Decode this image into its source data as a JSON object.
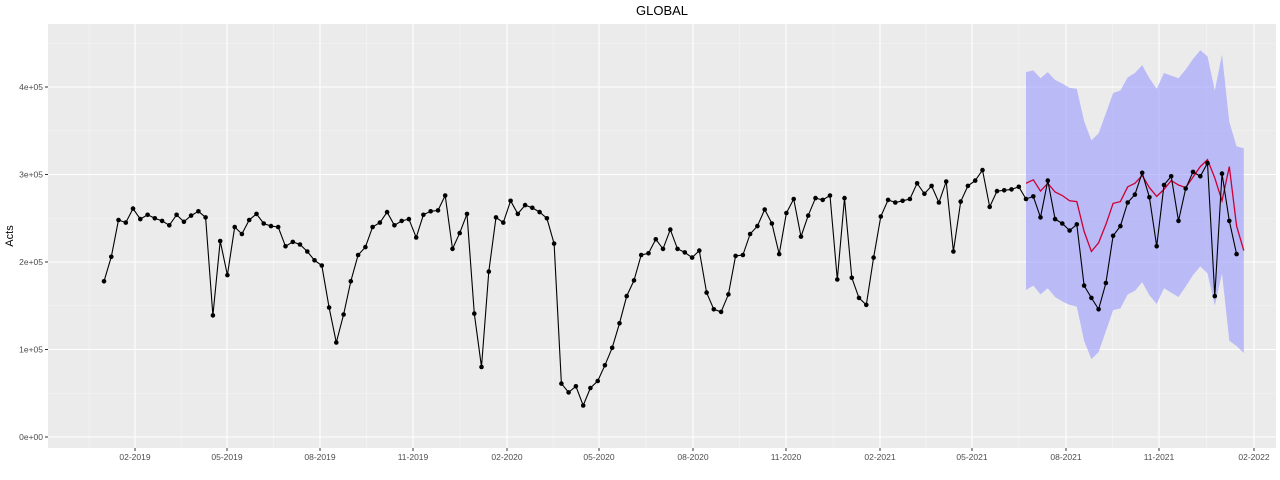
{
  "chart_data": {
    "type": "line",
    "title": "GLOBAL",
    "xlabel": "",
    "ylabel": "Acts",
    "x_ticks": [
      "02-2019",
      "05-2019",
      "08-2019",
      "11-2019",
      "02-2020",
      "05-2020",
      "08-2020",
      "11-2020",
      "02-2021",
      "05-2021",
      "08-2021",
      "11-2021",
      "02-2022"
    ],
    "y_ticks": [
      "0e+00",
      "1e+05",
      "2e+05",
      "3e+05",
      "4e+05"
    ],
    "ylim": [
      -10000,
      470000
    ],
    "grid": true,
    "background": "#ebebeb",
    "colors": {
      "actual": "#000000",
      "fitted": "#cc0033",
      "interval": "#9999ff"
    },
    "series": [
      {
        "values": [
          178000,
          206000,
          248000,
          245000,
          261000,
          249000,
          254000,
          250000,
          247000,
          242000,
          254000,
          246000,
          253000,
          258000,
          251000,
          139000,
          224000,
          185000,
          240000,
          232000,
          248000,
          255000,
          244000,
          241000,
          240000,
          218000,
          223000,
          220000,
          212000,
          202000,
          196000,
          148000,
          108000,
          140000,
          178000,
          208000,
          217000,
          240000,
          245000,
          257000,
          242000,
          247000,
          249000,
          228000,
          254000,
          258000,
          259000,
          276000,
          215000,
          233000,
          255000,
          141000,
          80000,
          189000,
          251000,
          245000,
          270000,
          255000,
          265000,
          262000,
          257000,
          250000,
          221000,
          61000,
          51000,
          58000,
          36000,
          56000,
          64000,
          82000,
          102000,
          130000,
          161000,
          179000,
          208000,
          210000,
          226000,
          215000,
          237000,
          215000,
          211000,
          205000,
          213000,
          165000,
          146000,
          143000,
          163000,
          207000,
          208000,
          232000,
          241000,
          260000,
          244000,
          209000,
          256000,
          272000,
          229000,
          253000,
          273000,
          271000,
          276000,
          180000,
          273000,
          182000,
          159000,
          151000,
          205000,
          252000,
          271000,
          268000,
          270000,
          272000,
          290000,
          278000,
          287000,
          268000,
          292000,
          212000,
          269000,
          287000,
          293000,
          305000,
          263000,
          281000,
          282000,
          283000,
          286000,
          272000,
          275000,
          251000,
          293000,
          249000,
          244000,
          236000,
          243000,
          173000,
          159000,
          146000,
          176000,
          230000,
          241000,
          268000,
          277000,
          302000,
          274000,
          218000,
          288000,
          298000,
          247000,
          284000,
          303000,
          298000,
          313000,
          161000,
          301000,
          247000,
          209000
        ]
      },
      {
        "start_index": 127,
        "values": [
          290000,
          294000,
          281000,
          290000,
          280000,
          276000,
          270000,
          269000,
          235000,
          212000,
          222000,
          243000,
          267000,
          269000,
          286000,
          290000,
          299000,
          285000,
          275000,
          283000,
          293000,
          288000,
          285000,
          297000,
          309000,
          317000,
          296000,
          270000,
          309000,
          241000,
          213000
        ]
      },
      {
        "start_index": 127,
        "upper": [
          417000,
          419000,
          410000,
          417000,
          408000,
          404000,
          399000,
          398000,
          361000,
          339000,
          347000,
          370000,
          393000,
          396000,
          411000,
          416000,
          425000,
          410000,
          398000,
          416000,
          413000,
          410000,
          420000,
          432000,
          442000,
          435000,
          396000,
          437000,
          360000,
          332000,
          330000
        ],
        "lower": [
          168000,
          173000,
          163000,
          170000,
          160000,
          155000,
          151000,
          149000,
          110000,
          89000,
          97000,
          121000,
          145000,
          147000,
          163000,
          167000,
          177000,
          162000,
          152000,
          170000,
          165000,
          160000,
          172000,
          185000,
          195000,
          187000,
          150000,
          187000,
          110000,
          104000,
          96000
        ]
      }
    ]
  }
}
